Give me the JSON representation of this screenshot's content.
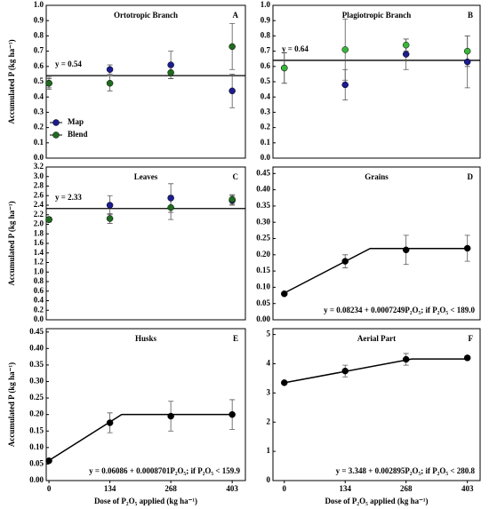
{
  "chart_data": [
    {
      "type": "scatter",
      "title": "Ortotropic Branch",
      "panel_label": "A",
      "ylabel": "Accumulated P (kg ha⁻¹)",
      "x": [
        0,
        134,
        268,
        403
      ],
      "xlim": [
        -6,
        432
      ],
      "ylim": [
        0,
        1.0
      ],
      "yticks": [
        {
          "value": 0,
          "label": "0.0"
        },
        0.1,
        0.2,
        0.3,
        0.4,
        0.5,
        0.6,
        0.7,
        0.8,
        0.9,
        {
          "value": 1,
          "label": "1.0"
        }
      ],
      "series": [
        {
          "name": "Map",
          "color": "#1c1c8e",
          "values": [
            0.49,
            0.58,
            0.61,
            0.44
          ],
          "errors": [
            0.03,
            0.03,
            0.09,
            0.11
          ]
        },
        {
          "name": "Blend",
          "color": "#1f6b1f",
          "values": [
            0.49,
            0.49,
            0.56,
            0.73
          ],
          "errors": [
            0.04,
            0.05,
            0.04,
            0.15
          ]
        }
      ],
      "fit_label": "y = 0.54",
      "plateau": 0.54,
      "legend": "lower left"
    },
    {
      "type": "scatter",
      "title": "Plagiotropic Branch",
      "panel_label": "B",
      "x": [
        0,
        134,
        268,
        403
      ],
      "xlim": [
        -25,
        431
      ],
      "ylim": [
        0,
        1.0
      ],
      "yticks": [
        {
          "value": 0,
          "label": "0.0"
        },
        0.1,
        0.2,
        0.3,
        0.4,
        0.5,
        0.6,
        0.7,
        0.8,
        0.9,
        {
          "value": 1,
          "label": "1.0"
        }
      ],
      "series": [
        {
          "name": "Map",
          "color": "#1c1c8e",
          "values": [
            0.59,
            0.48,
            0.68,
            0.63
          ],
          "errors": [
            0.1,
            0.1,
            0.1,
            0.17
          ]
        },
        {
          "name": "Blend",
          "color": "#3cb43c",
          "values": [
            0.59,
            0.71,
            0.74,
            0.7
          ],
          "errors": [
            0.1,
            0.2,
            0.04,
            0.1
          ]
        }
      ],
      "fit_label": "y = 0.64",
      "plateau": 0.64
    },
    {
      "type": "scatter",
      "title": "Leaves",
      "panel_label": "C",
      "ylabel": "Accumulated P (kg ha⁻¹)",
      "x": [
        0,
        134,
        268,
        403
      ],
      "xlim": [
        -6,
        432
      ],
      "ylim": [
        0,
        3.2
      ],
      "yticks": [
        {
          "value": 0,
          "label": "0.0"
        },
        0.2,
        0.4,
        0.6,
        0.8,
        {
          "value": 1,
          "label": "1.0"
        },
        1.2,
        1.4,
        1.6,
        1.8,
        {
          "value": 2,
          "label": "2.0"
        },
        2.2,
        2.4,
        2.6,
        2.8,
        {
          "value": 3,
          "label": "3.0"
        },
        3.2
      ],
      "series": [
        {
          "name": "Map",
          "color": "#1c1c8e",
          "values": [
            2.1,
            2.4,
            2.55,
            2.5
          ],
          "errors": [
            0.05,
            0.2,
            0.3,
            0.1
          ]
        },
        {
          "name": "Blend",
          "color": "#1f6b1f",
          "values": [
            2.1,
            2.12,
            2.35,
            2.52
          ],
          "errors": [
            0.05,
            0.1,
            0.25,
            0.1
          ]
        }
      ],
      "fit_label": "y = 2.33",
      "plateau": 2.33
    },
    {
      "type": "scatter",
      "title": "Grains",
      "panel_label": "D",
      "x": [
        0,
        134,
        268,
        403
      ],
      "xlim": [
        -25,
        431
      ],
      "ylim": [
        0,
        0.47
      ],
      "yticks": [
        {
          "value": 0,
          "label": "0.00"
        },
        0.05,
        {
          "value": 0.1,
          "label": "0.10"
        },
        0.15,
        {
          "value": 0.2,
          "label": "0.20"
        },
        0.25,
        {
          "value": 0.3,
          "label": "0.30"
        },
        0.35,
        {
          "value": 0.4,
          "label": "0.40"
        },
        0.45
      ],
      "series": [
        {
          "color": "#000000",
          "values": [
            0.08,
            0.18,
            0.215,
            0.22
          ],
          "errors": [
            0.005,
            0.02,
            0.045,
            0.04
          ]
        }
      ],
      "equation": "y = 0.08234 + 0.0007249P₂O₅;  if P₂O₅ < 189.0",
      "model": {
        "intercept": 0.08234,
        "slope": 0.0007249,
        "breakpoint": 189.0
      }
    },
    {
      "type": "scatter",
      "title": "Husks",
      "panel_label": "E",
      "ylabel": "Accumulated P (kg ha⁻¹)",
      "xlabel": "Dose of P₂O₅ applied (kg ha⁻¹)",
      "x": [
        0,
        134,
        268,
        403
      ],
      "xlim": [
        -6,
        432
      ],
      "ylim": [
        0,
        0.46
      ],
      "xticks": [
        0,
        134,
        268,
        403
      ],
      "yticks": [
        {
          "value": 0,
          "label": "0.00"
        },
        0.05,
        {
          "value": 0.1,
          "label": "0.10"
        },
        0.15,
        {
          "value": 0.2,
          "label": "0.20"
        },
        0.25,
        {
          "value": 0.3,
          "label": "0.30"
        },
        0.35,
        {
          "value": 0.4,
          "label": "0.40"
        },
        0.45
      ],
      "series": [
        {
          "color": "#000000",
          "values": [
            0.06,
            0.175,
            0.195,
            0.2
          ],
          "errors": [
            0.005,
            0.03,
            0.045,
            0.045
          ]
        }
      ],
      "equation": "y = 0.06086 + 0.0008701P₂O₅;  if P₂O₅ < 159.9",
      "model": {
        "intercept": 0.06086,
        "slope": 0.0008701,
        "breakpoint": 159.9
      }
    },
    {
      "type": "scatter",
      "title": "Aerial Part",
      "panel_label": "F",
      "xlabel": "Dose of P₂O₅ applied (kg ha⁻¹)",
      "x": [
        0,
        134,
        268,
        403
      ],
      "xlim": [
        -25,
        431
      ],
      "ylim": [
        0,
        5.2
      ],
      "xticks": [
        0,
        134,
        268,
        403
      ],
      "yticks": [
        0,
        1,
        2,
        3,
        4,
        5
      ],
      "series": [
        {
          "color": "#000000",
          "values": [
            3.35,
            3.75,
            4.15,
            4.2
          ],
          "errors": [
            0.05,
            0.2,
            0.2,
            0.07
          ]
        }
      ],
      "equation": "y = 3.348 + 0.002895P₂O₅;  if P₂O₅ < 280.8",
      "model": {
        "intercept": 3.348,
        "slope": 0.002895,
        "breakpoint": 280.8
      }
    }
  ]
}
